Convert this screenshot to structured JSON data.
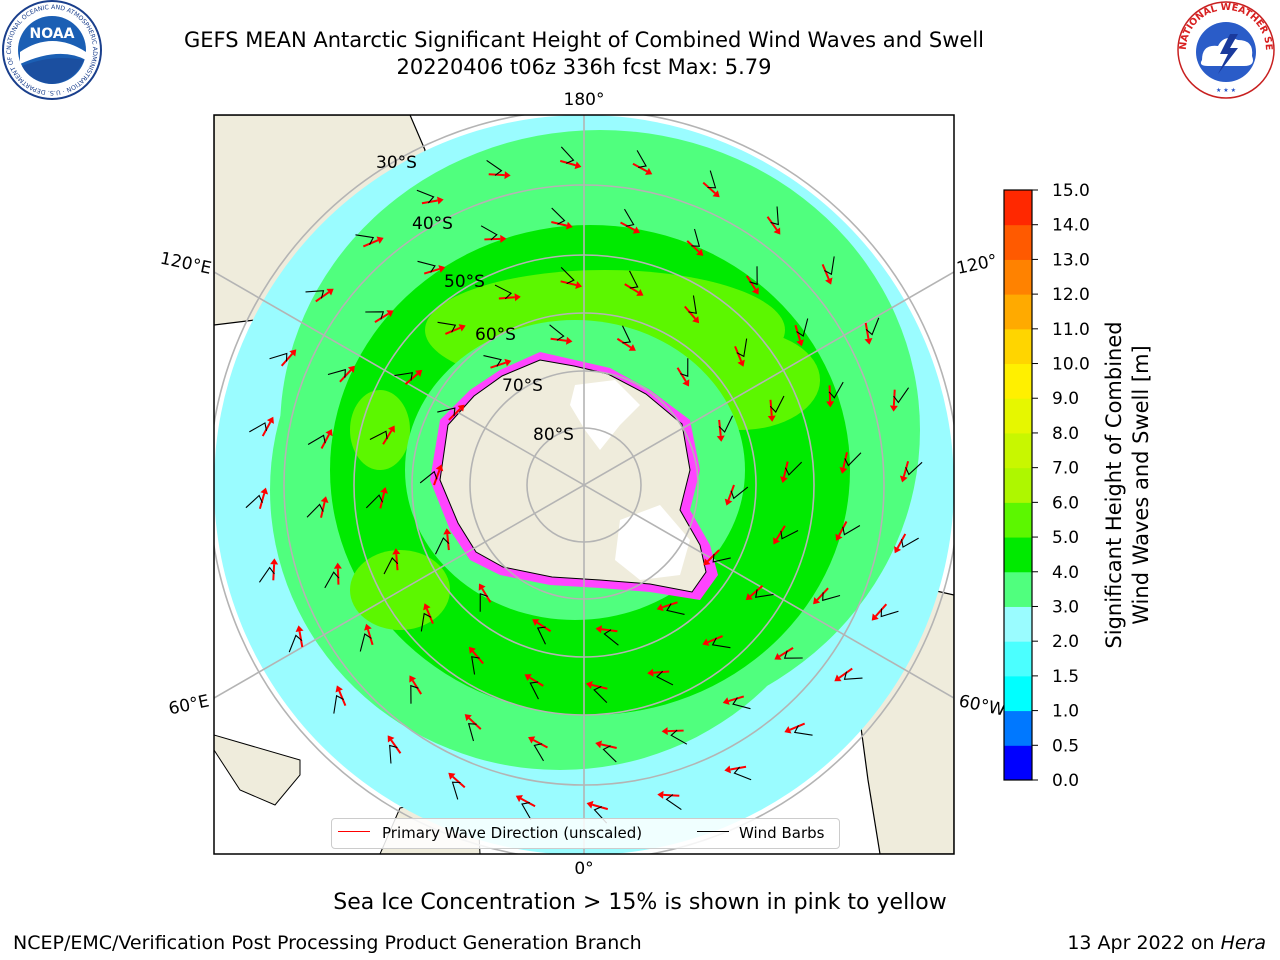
{
  "header": {
    "title_line1": "GEFS MEAN Antarctic Significant Height of Combined Wind Waves and Swell",
    "title_line2": "20220406 t06z 336h fcst   Max: 5.79"
  },
  "logos": {
    "left": {
      "icon": "noaa-logo",
      "text": "NOAA",
      "ring_text": "NATIONAL OCEANIC AND ATMOSPHERIC ADMINISTRATION · U.S. DEPARTMENT OF COMMERCE"
    },
    "right": {
      "icon": "national-weather-service-logo",
      "ring_text": "NATIONAL WEATHER SERVICE"
    }
  },
  "map": {
    "projection": "south-polar-stereographic",
    "longitude_labels": {
      "top": "180°",
      "bottom": "0°",
      "upper_left": "120°E",
      "lower_left": "60°E",
      "upper_right": "120°",
      "lower_right": "60°W"
    },
    "latitude_labels": [
      "30°S",
      "40°S",
      "50°S",
      "60°S",
      "70°S",
      "80°S"
    ],
    "colors": {
      "land": "#efecdc",
      "ice_shelf": "#ffffff",
      "grid": "#b4b4b4",
      "wave_arrow": "#ff0000",
      "wind_barb": "#000000"
    }
  },
  "legend": {
    "wave_label": "Primary Wave Direction (unscaled)",
    "wind_label": "Wind Barbs"
  },
  "colorbar": {
    "label_line1": "Significant Height of Combined",
    "label_line2": "Wind Waves and Swell [m]",
    "levels": [
      "0.0",
      "0.5",
      "1.0",
      "1.5",
      "2.0",
      "3.0",
      "4.0",
      "5.0",
      "6.0",
      "7.0",
      "8.0",
      "9.0",
      "10.0",
      "11.0",
      "12.0",
      "13.0",
      "14.0",
      "15.0"
    ],
    "colors": [
      "#0000ff",
      "#0078ff",
      "#00ffff",
      "#4bffff",
      "#9afcff",
      "#50ff7e",
      "#00ea00",
      "#5cf700",
      "#aef700",
      "#c8f700",
      "#e6f700",
      "#fff000",
      "#ffd500",
      "#ffaa00",
      "#ff8200",
      "#ff5a00",
      "#ff2800"
    ]
  },
  "caption": "Sea Ice Concentration > 15% is shown in pink to yellow",
  "footer": {
    "left": "NCEP/EMC/Verification Post Processing Product Generation Branch",
    "right_date": "13 Apr 2022 on ",
    "right_machine": "Hera"
  }
}
